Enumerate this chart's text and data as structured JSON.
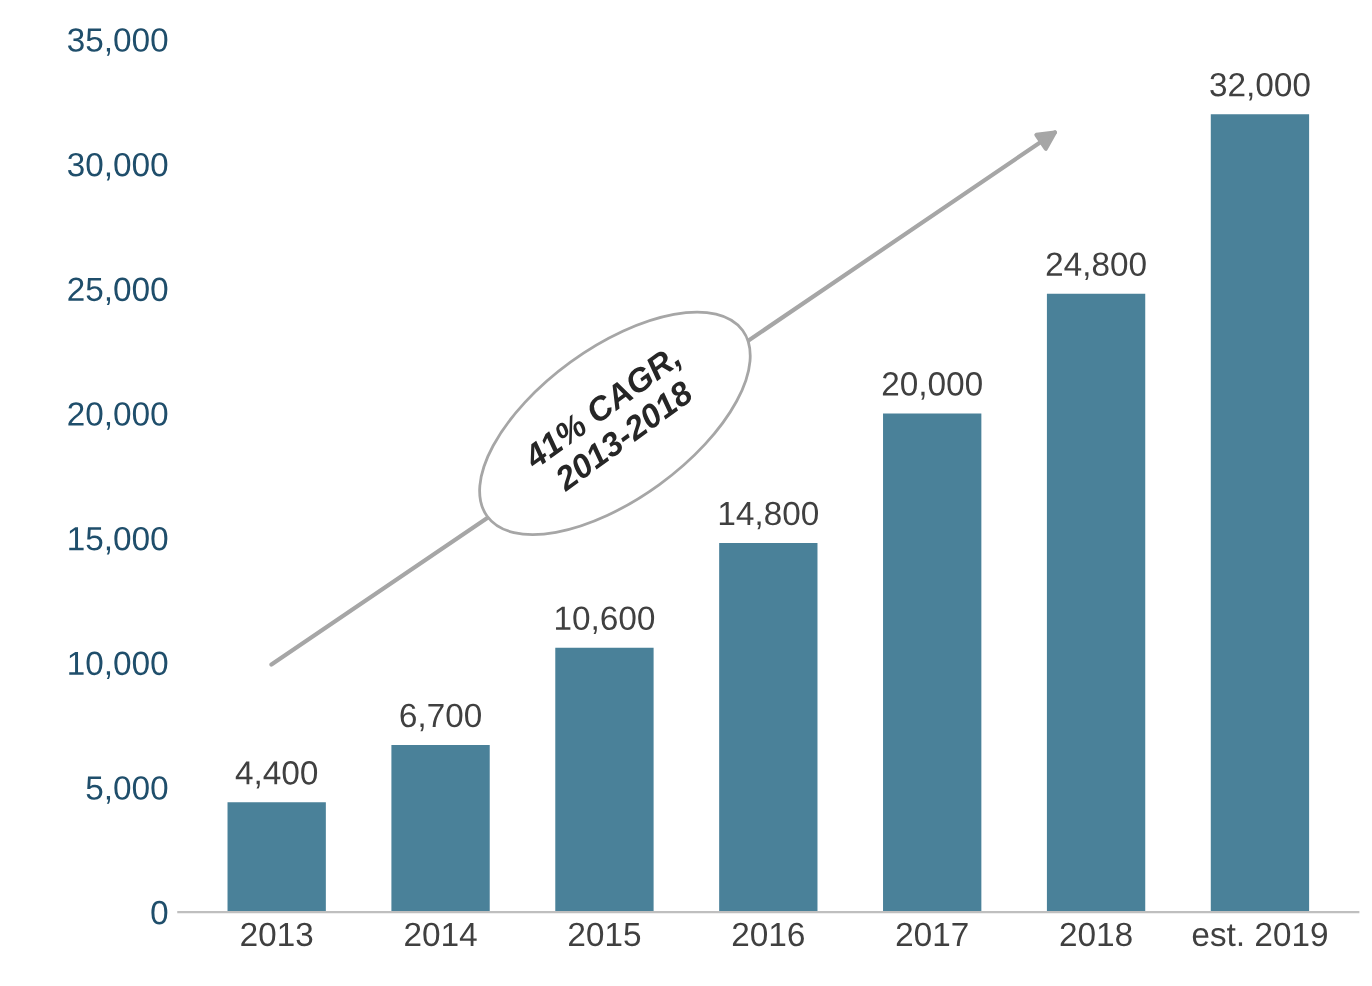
{
  "chart_data": {
    "type": "bar",
    "categories": [
      "2013",
      "2014",
      "2015",
      "2016",
      "2017",
      "2018",
      "est. 2019"
    ],
    "values": [
      4400,
      6700,
      10600,
      14800,
      20000,
      24800,
      32000
    ],
    "value_labels": [
      "4,400",
      "6,700",
      "10,600",
      "14,800",
      "20,000",
      "24,800",
      "32,000"
    ],
    "color": "#4a8199",
    "ylim": [
      0,
      35000
    ],
    "yticks": [
      {
        "value": 0,
        "label": "0"
      },
      {
        "value": 5000,
        "label": "5,000"
      },
      {
        "value": 10000,
        "label": "10,000"
      },
      {
        "value": 15000,
        "label": "15,000"
      },
      {
        "value": 20000,
        "label": "20,000"
      },
      {
        "value": 25000,
        "label": "25,000"
      },
      {
        "value": 30000,
        "label": "30,000"
      },
      {
        "value": 35000,
        "label": "35,000"
      }
    ],
    "grid": false,
    "annotations": [
      "41% CAGR,\n2013-2018"
    ]
  }
}
